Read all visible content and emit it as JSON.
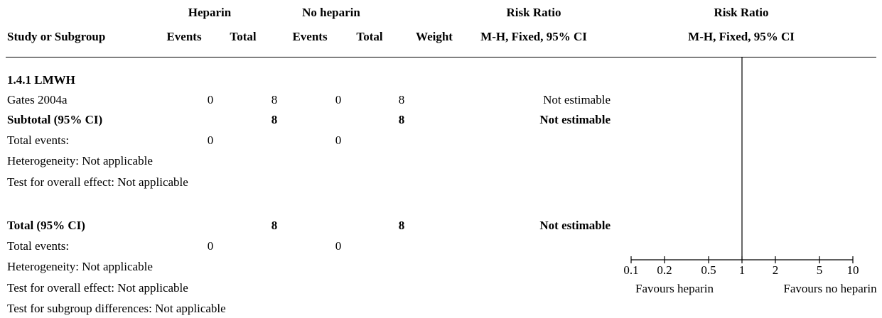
{
  "header": {
    "group1": "Heparin",
    "group2": "No heparin",
    "rr_left": "Risk Ratio",
    "rr_right": "Risk Ratio",
    "study_col": "Study or Subgroup",
    "events1": "Events",
    "total1": "Total",
    "events2": "Events",
    "total2": "Total",
    "weight": "Weight",
    "method_left": "M-H, Fixed, 95% CI",
    "method_right": "M-H, Fixed, 95% CI"
  },
  "subgroup": {
    "title": "1.4.1 LMWH",
    "study": {
      "name": "Gates 2004a",
      "events1": "0",
      "total1": "8",
      "events2": "0",
      "total2": "8",
      "result": "Not estimable"
    },
    "subtotal": {
      "label": "Subtotal (95% CI)",
      "total1": "8",
      "total2": "8",
      "result": "Not estimable"
    },
    "total_events": {
      "label": "Total events:",
      "events1": "0",
      "events2": "0"
    },
    "heterogeneity": "Heterogeneity: Not applicable",
    "overall_effect": "Test for overall effect: Not applicable"
  },
  "overall": {
    "label": "Total (95% CI)",
    "total1": "8",
    "total2": "8",
    "result": "Not estimable",
    "total_events": {
      "label": "Total events:",
      "events1": "0",
      "events2": "0"
    },
    "heterogeneity": "Heterogeneity: Not applicable",
    "overall_effect": "Test for overall effect: Not applicable",
    "subgroup_diff": "Test for subgroup differences: Not applicable"
  },
  "chart_data": {
    "type": "forest",
    "scale": "log",
    "xlim": [
      0.1,
      10
    ],
    "ticks": [
      {
        "value": 0.1,
        "label": "0.1"
      },
      {
        "value": 0.2,
        "label": "0.2"
      },
      {
        "value": 0.5,
        "label": "0.5"
      },
      {
        "value": 1,
        "label": "1"
      },
      {
        "value": 2,
        "label": "2"
      },
      {
        "value": 5,
        "label": "5"
      },
      {
        "value": 10,
        "label": "10"
      }
    ],
    "reference_line": 1,
    "favours_left": "Favours heparin",
    "favours_right": "Favours no heparin",
    "estimates": []
  }
}
